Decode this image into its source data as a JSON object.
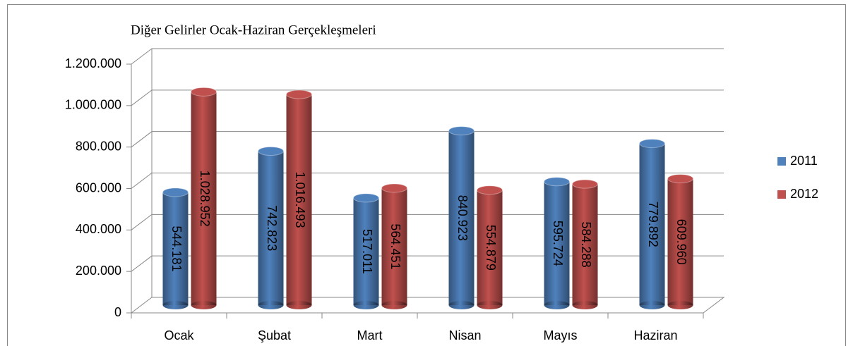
{
  "chart_data": {
    "type": "bar3d",
    "title": "Diğer Gelirler Ocak-Haziran Gerçekleşmeleri",
    "categories": [
      "Ocak",
      "Şubat",
      "Mart",
      "Nisan",
      "Mayıs",
      "Haziran"
    ],
    "series": [
      {
        "name": "2011",
        "color": "#4f81bd",
        "values": [
          544181,
          742823,
          517011,
          840923,
          595724,
          779892
        ],
        "value_labels": [
          "544.181",
          "742.823",
          "517.011",
          "840.923",
          "595.724",
          "779.892"
        ]
      },
      {
        "name": "2012",
        "color": "#c0504d",
        "values": [
          1028952,
          1016493,
          564451,
          554879,
          584288,
          609960
        ],
        "value_labels": [
          "1.028.952",
          "1.016.493",
          "564.451",
          "554.879",
          "584.288",
          "609.960"
        ]
      }
    ],
    "ylim": [
      0,
      1200000
    ],
    "yticks": [
      0,
      {
        "value": 200000,
        "label": "200.000"
      },
      {
        "value": 400000,
        "label": "400.000"
      },
      {
        "value": 600000,
        "label": "600.000"
      },
      {
        "value": 800000,
        "label": "800.000"
      },
      {
        "value": 1000000,
        "label": "1.000.000"
      },
      {
        "value": 1200000,
        "label": "1.200.000"
      }
    ],
    "grid": true,
    "legend": "right"
  }
}
